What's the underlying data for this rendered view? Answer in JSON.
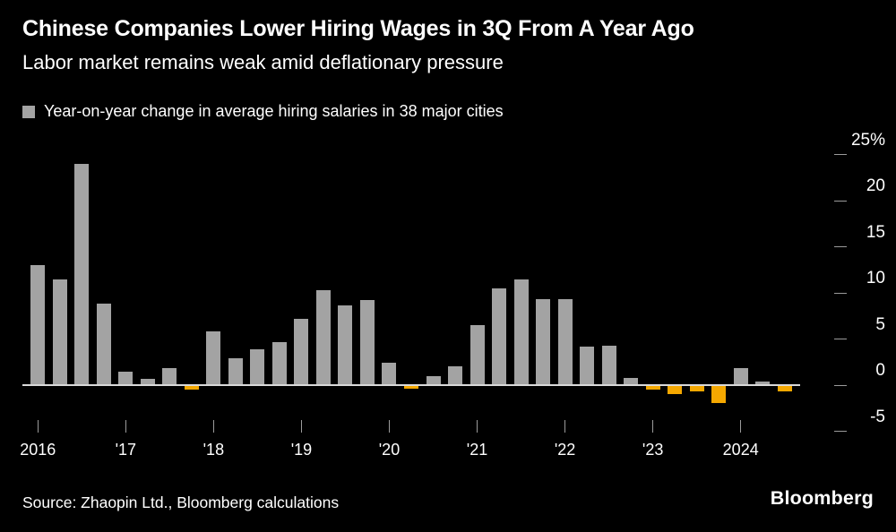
{
  "header": {
    "title": "Chinese Companies Lower Hiring Wages in 3Q From A Year Ago",
    "subtitle": "Labor market remains weak amid deflationary pressure"
  },
  "legend": {
    "label": "Year-on-year change in average hiring salaries in 38 major cities"
  },
  "chart_data": {
    "type": "bar",
    "title": "Year-on-year change in average hiring salaries in 38 major cities",
    "x": [
      "2016 Q1",
      "2016 Q2",
      "2016 Q3",
      "2016 Q4",
      "2017 Q1",
      "2017 Q2",
      "2017 Q3",
      "2017 Q4",
      "2018 Q1",
      "2018 Q2",
      "2018 Q3",
      "2018 Q4",
      "2019 Q1",
      "2019 Q2",
      "2019 Q3",
      "2019 Q4",
      "2020 Q1",
      "2020 Q2",
      "2020 Q3",
      "2020 Q4",
      "2021 Q1",
      "2021 Q2",
      "2021 Q3",
      "2021 Q4",
      "2022 Q1",
      "2022 Q2",
      "2022 Q3",
      "2022 Q4",
      "2023 Q1",
      "2023 Q2",
      "2023 Q3",
      "2023 Q4",
      "2024 Q1",
      "2024 Q2",
      "2024 Q3"
    ],
    "values": [
      13,
      11.5,
      24,
      8.8,
      1.5,
      0.7,
      1.8,
      -0.4,
      5.8,
      2.9,
      3.9,
      4.7,
      7.2,
      10.3,
      8.6,
      9.2,
      2.4,
      -0.3,
      1.0,
      2.0,
      6.5,
      10.5,
      11.5,
      9.3,
      9.3,
      4.2,
      4.3,
      0.8,
      -0.4,
      -0.9,
      -0.6,
      -1.8,
      1.8,
      0.4,
      -0.6
    ],
    "unit": "%",
    "positive_color": "#a3a3a3",
    "negative_color": "#f5a800",
    "yticks": [
      25,
      20,
      15,
      10,
      5,
      0,
      -5
    ],
    "ytick_labels": [
      "25%",
      "20",
      "15",
      "10",
      "5",
      "0",
      "-5"
    ],
    "ylim": [
      -6.5,
      26.5
    ],
    "xtick_labels": [
      "2016",
      "'17",
      "'18",
      "'19",
      "'20",
      "'21",
      "'22",
      "'23",
      "2024"
    ],
    "grid": false,
    "legend_position": "top-left",
    "axis_side": "right"
  },
  "footer": {
    "source": "Source: Zhaopin Ltd., Bloomberg calculations",
    "brand": "Bloomberg"
  }
}
